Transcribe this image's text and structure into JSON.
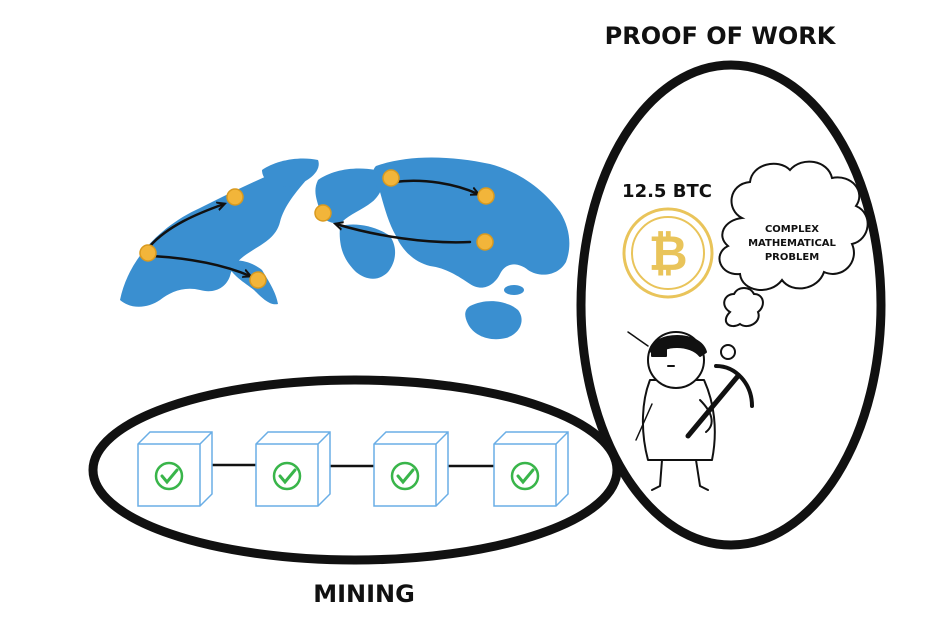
{
  "labels": {
    "proof_of_work": "PROOF OF WORK",
    "mining": "MINING",
    "reward": "12.5 BTC",
    "cloud_line1": "COMPLEX",
    "cloud_line2": "MATHEMATICAL",
    "cloud_line3": "PROBLEM"
  },
  "coin_symbol": "₿",
  "colors": {
    "land": "#3a8fd0",
    "coin": "#f2b53a",
    "coin_outline": "#e9c45a",
    "block_edge": "#6aaee6",
    "check": "#39b54a",
    "ink": "#111111"
  }
}
